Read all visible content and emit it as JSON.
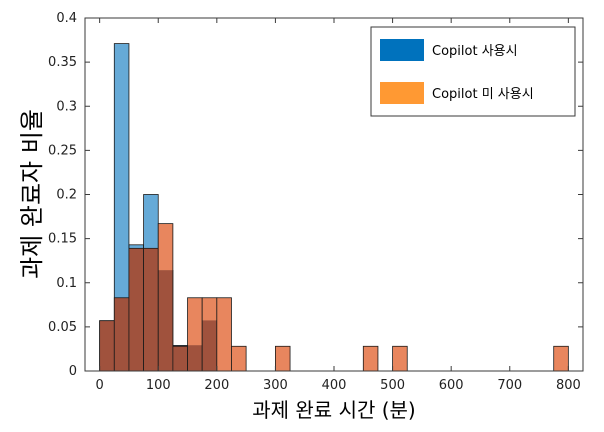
{
  "chart_data": {
    "type": "bar",
    "subtype": "overlaid-histogram",
    "xlabel": "과제 완료 시간 (분)",
    "ylabel": "과제 완료자 비율",
    "xlim": [
      -25,
      825
    ],
    "ylim": [
      0,
      0.4
    ],
    "xticks": [
      0,
      100,
      200,
      300,
      400,
      500,
      600,
      700,
      800
    ],
    "yticks": [
      0,
      0.05,
      0.1,
      0.15,
      0.2,
      0.25,
      0.3,
      0.35,
      0.4
    ],
    "ytick_labels": [
      "0",
      "0.05",
      "0.1",
      "0.15",
      "0.2",
      "0.25",
      "0.3",
      "0.35",
      "0.4"
    ],
    "bin_width": 25,
    "grid": false,
    "legend_position": "top-right",
    "overlap_color": "#a0523d",
    "series": [
      {
        "name": "Copilot 사용시",
        "color": "#0072bd",
        "bin_starts": [
          0,
          25,
          50,
          75,
          100,
          125,
          150,
          175
        ],
        "values": [
          0.057,
          0.371,
          0.143,
          0.2,
          0.114,
          0.029,
          0.029,
          0.057
        ]
      },
      {
        "name": "Copilot 미 사용시",
        "color": "#ff9933",
        "bin_starts": [
          0,
          25,
          50,
          75,
          100,
          125,
          150,
          175,
          200,
          225,
          300,
          450,
          500,
          775
        ],
        "values": [
          0.057,
          0.083,
          0.139,
          0.139,
          0.167,
          0.028,
          0.083,
          0.083,
          0.083,
          0.028,
          0.028,
          0.028,
          0.028,
          0.028
        ]
      }
    ]
  }
}
